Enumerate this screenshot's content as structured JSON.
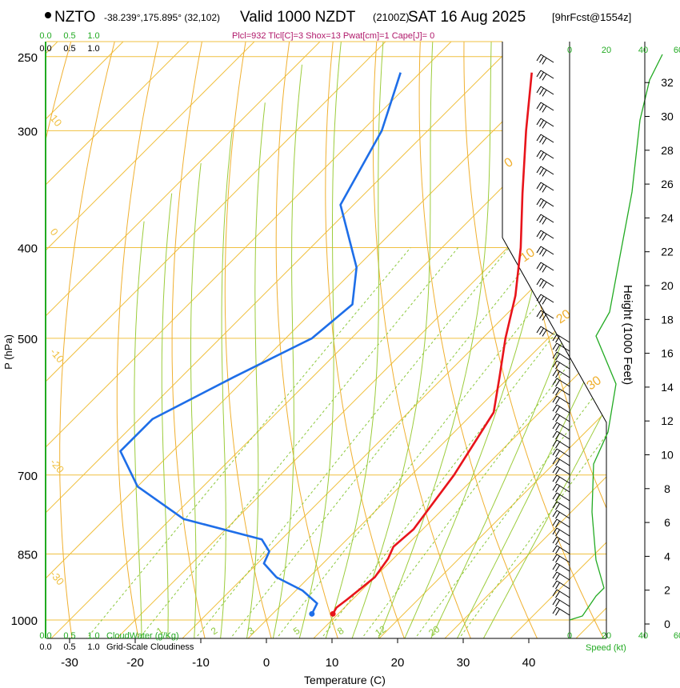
{
  "header": {
    "station": "NZTO",
    "coords": "-38.239°,175.895° (32,102)",
    "valid": "Valid 1000 NZDT",
    "utc": "(2100Z)",
    "date": "SAT 16 Aug 2025",
    "forecast": "[9hrFcst@1554z]",
    "indices": "Plcl=932 Tlcl[C]=3 Shox=13 Pwat[cm]=1 Cape[J]= 0"
  },
  "colors": {
    "temp": "#e8141b",
    "dewpoint": "#1e6ee8",
    "isotherm": "#f0c040",
    "dry_adiabat": "#f0b030",
    "moist_adiabat": "#9ccc3c",
    "mixing_ratio": "#8cc83c",
    "axis_green": "#22aa22"
  },
  "chart_data": {
    "type": "skew-t",
    "title": "NZTO Valid 1000 NZDT SAT 16 Aug 2025",
    "xlabel": "Temperature (C)",
    "ylabel": "P (hPa)",
    "right_ylabel": "Height (1000 Feet)",
    "speed_label": "Speed (kt)",
    "x_ticks": [
      "-30",
      "-20",
      "-10",
      "0",
      "10",
      "20",
      "30",
      "40"
    ],
    "pressure_levels": [
      250,
      300,
      400,
      500,
      700,
      850,
      1000
    ],
    "pressure_labels": [
      "250",
      "300",
      "400",
      "500",
      "700",
      "850",
      "1000"
    ],
    "height_ticks": [
      "0",
      "2",
      "4",
      "6",
      "8",
      "10",
      "12",
      "14",
      "16",
      "18",
      "20",
      "22",
      "24",
      "26",
      "28",
      "30",
      "32"
    ],
    "speed_ticks": [
      "0",
      "20",
      "40",
      "60"
    ],
    "cloud_ticks": [
      "0.0",
      "0.5",
      "1.0"
    ],
    "cloudwater_label": "CloudWater (g/Kg)",
    "cloudiness_label": "Grid-Scale Cloudiness",
    "mixing_ratio_labels": [
      "1",
      "2",
      "3",
      "5",
      "8",
      "12",
      "20"
    ],
    "isotherm_labels": [
      "10",
      "0",
      "-10",
      "-20",
      "-30"
    ],
    "adiabat_labels": [
      "0",
      "10",
      "20",
      "30"
    ],
    "temperature": [
      {
        "p": 985,
        "t": 9.2
      },
      {
        "p": 970,
        "t": 8.8
      },
      {
        "p": 950,
        "t": 9.2
      },
      {
        "p": 900,
        "t": 10.0
      },
      {
        "p": 860,
        "t": 9.2
      },
      {
        "p": 835,
        "t": 8.2
      },
      {
        "p": 800,
        "t": 8.6
      },
      {
        "p": 700,
        "t": 6.5
      },
      {
        "p": 600,
        "t": 3.0
      },
      {
        "p": 550,
        "t": -1.5
      },
      {
        "p": 500,
        "t": -6.5
      },
      {
        "p": 450,
        "t": -11.5
      },
      {
        "p": 400,
        "t": -18.0
      },
      {
        "p": 350,
        "t": -26.0
      },
      {
        "p": 300,
        "t": -35.0
      },
      {
        "p": 260,
        "t": -43.0
      }
    ],
    "dewpoint": [
      {
        "p": 985,
        "t": 6.0
      },
      {
        "p": 960,
        "t": 5.2
      },
      {
        "p": 930,
        "t": 1.0
      },
      {
        "p": 900,
        "t": -5.0
      },
      {
        "p": 870,
        "t": -9.0
      },
      {
        "p": 845,
        "t": -10.0
      },
      {
        "p": 820,
        "t": -13.0
      },
      {
        "p": 780,
        "t": -28.0
      },
      {
        "p": 720,
        "t": -40.0
      },
      {
        "p": 660,
        "t": -48.0
      },
      {
        "p": 610,
        "t": -48.0
      },
      {
        "p": 550,
        "t": -42.0
      },
      {
        "p": 500,
        "t": -36.0
      },
      {
        "p": 460,
        "t": -35.0
      },
      {
        "p": 420,
        "t": -40.0
      },
      {
        "p": 360,
        "t": -52.0
      },
      {
        "p": 300,
        "t": -57.0
      },
      {
        "p": 260,
        "t": -63.0
      }
    ],
    "skew": {
      "x0c": 0,
      "p_top": 250,
      "p_bottom": 1050
    }
  }
}
